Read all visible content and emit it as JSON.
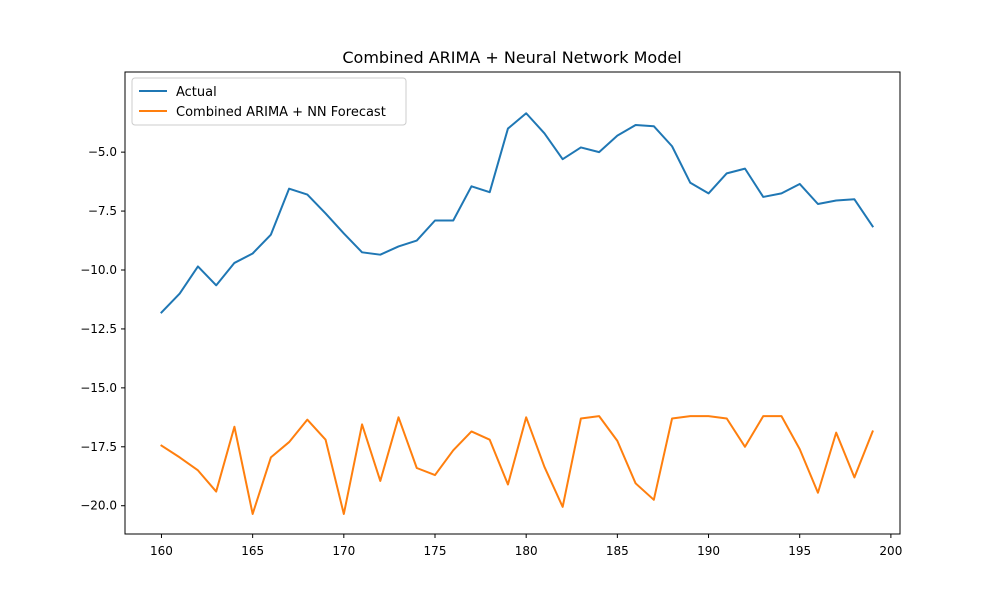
{
  "chart_data": {
    "type": "line",
    "title": "Combined ARIMA + Neural Network Model",
    "xlabel": "",
    "ylabel": "",
    "xlim": [
      158,
      200.5
    ],
    "ylim": [
      -21.2,
      -1.6
    ],
    "x_ticks": [
      160,
      165,
      170,
      175,
      180,
      185,
      190,
      195,
      200
    ],
    "y_ticks": [
      -20.0,
      -17.5,
      -15.0,
      -12.5,
      -10.0,
      -7.5,
      -5.0
    ],
    "x_tick_labels": [
      "160",
      "165",
      "170",
      "175",
      "180",
      "185",
      "190",
      "195",
      "200"
    ],
    "y_tick_labels": [
      "−20.0",
      "−17.5",
      "−15.0",
      "−12.5",
      "−10.0",
      "−7.5",
      "−5.0"
    ],
    "grid": false,
    "legend_position": "upper-left",
    "x": [
      160,
      161,
      162,
      163,
      164,
      165,
      166,
      167,
      168,
      169,
      170,
      171,
      172,
      173,
      174,
      175,
      176,
      177,
      178,
      179,
      180,
      181,
      182,
      183,
      184,
      185,
      186,
      187,
      188,
      189,
      190,
      191,
      192,
      193,
      194,
      195,
      196,
      197,
      198,
      199
    ],
    "series": [
      {
        "name": "Actual",
        "color": "#1f77b4",
        "values": [
          -11.8,
          -11.0,
          -9.85,
          -10.65,
          -9.7,
          -9.3,
          -8.5,
          -6.55,
          -6.8,
          -7.6,
          -8.45,
          -9.25,
          -9.35,
          -9.0,
          -8.75,
          -7.9,
          -7.9,
          -6.45,
          -6.7,
          -4.0,
          -3.35,
          -4.2,
          -5.3,
          -4.8,
          -5.0,
          -4.3,
          -3.85,
          -3.9,
          -4.75,
          -6.3,
          -6.75,
          -5.9,
          -5.7,
          -6.9,
          -6.75,
          -6.35,
          -7.2,
          -7.05,
          -7.0,
          -8.15
        ]
      },
      {
        "name": "Combined ARIMA + NN Forecast",
        "color": "#ff7f0e",
        "values": [
          -17.45,
          -17.95,
          -18.5,
          -19.4,
          -16.65,
          -20.35,
          -17.95,
          -17.3,
          -16.35,
          -17.2,
          -20.35,
          -16.55,
          -18.95,
          -16.25,
          -18.4,
          -18.7,
          -17.65,
          -16.85,
          -17.2,
          -19.1,
          -16.25,
          -18.35,
          -20.05,
          -16.3,
          -16.2,
          -17.25,
          -19.05,
          -19.75,
          -16.3,
          -16.2,
          -16.2,
          -16.3,
          -17.5,
          -16.2,
          -16.2,
          -17.6,
          -19.45,
          -16.9,
          -18.8,
          -16.85
        ]
      }
    ]
  }
}
